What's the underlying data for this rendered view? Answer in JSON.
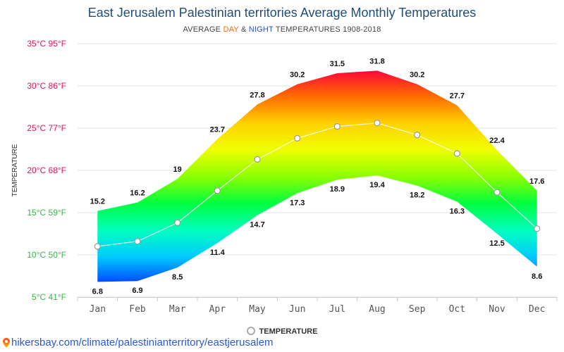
{
  "header": {
    "title": "East Jerusalem Palestinian territories Average Monthly Temperatures",
    "subtitle_prefix": "AVERAGE ",
    "subtitle_day": "DAY",
    "subtitle_amp": " & ",
    "subtitle_night": "NIGHT",
    "subtitle_suffix": " TEMPERATURES 1908-2018"
  },
  "legend": {
    "label": "TEMPERATURE"
  },
  "footer": {
    "url": "hikersbay.com/climate/palestinianterritory/eastjerusalem"
  },
  "chart_data": {
    "type": "area",
    "ylabel": "TEMPERATURE",
    "ylim": [
      5,
      35
    ],
    "yticks": [
      {
        "value": 35,
        "label": "35°C 95°F",
        "color": "#e8125e"
      },
      {
        "value": 30,
        "label": "30°C 86°F",
        "color": "#e8125e"
      },
      {
        "value": 25,
        "label": "25°C 77°F",
        "color": "#e8125e"
      },
      {
        "value": 20,
        "label": "20°C 68°F",
        "color": "#e8125e"
      },
      {
        "value": 15,
        "label": "15°C 59°F",
        "color": "#3cb44b"
      },
      {
        "value": 10,
        "label": "10°C 50°F",
        "color": "#3cb44b"
      },
      {
        "value": 5,
        "label": "5°C 41°F",
        "color": "#3cb44b"
      }
    ],
    "categories": [
      "Jan",
      "Feb",
      "Mar",
      "Apr",
      "May",
      "Jun",
      "Jul",
      "Aug",
      "Sep",
      "Oct",
      "Nov",
      "Dec"
    ],
    "series": [
      {
        "name": "DAY",
        "values": [
          15.2,
          16.2,
          19,
          23.7,
          27.8,
          30.2,
          31.5,
          31.8,
          30.2,
          27.7,
          22.4,
          17.6
        ]
      },
      {
        "name": "NIGHT",
        "values": [
          6.8,
          6.9,
          8.5,
          11.4,
          14.7,
          17.3,
          18.9,
          19.4,
          18.2,
          16.3,
          12.5,
          8.6
        ]
      },
      {
        "name": "TEMPERATURE",
        "values": [
          11.0,
          11.6,
          13.8,
          17.6,
          21.3,
          23.8,
          25.2,
          25.6,
          24.2,
          22.0,
          17.4,
          13.1
        ]
      }
    ],
    "colors": {
      "gradient": [
        "#ff0040",
        "#ff6a00",
        "#ffd000",
        "#f0ff00",
        "#8cff00",
        "#00ff40",
        "#00ffc0",
        "#00c8ff",
        "#0040ff"
      ],
      "mean_line": "#ffffff",
      "grid": "#e6e6e6"
    },
    "grid": true,
    "legend_position": "bottom-center"
  }
}
